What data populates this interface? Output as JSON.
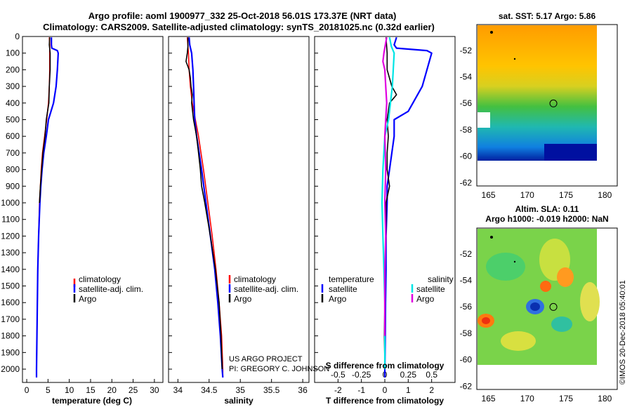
{
  "header": {
    "line1": "Argo profile: aoml 1900977_332 25-Oct-2018 56.01S 173.37E (NRT data)",
    "line2": "Climatology: CARS2009. Satellite-adjusted climatology: synTS_20181025.nc (0.32d earlier)"
  },
  "colors": {
    "climatology": "#ff0000",
    "satellite": "#0000ff",
    "argo": "#000000",
    "sat_salinity": "#00e5e5",
    "argo_salinity": "#e000e0"
  },
  "chart_data": [
    {
      "id": "temperature",
      "type": "line",
      "xlabel": "temperature (deg C)",
      "ylabel": "",
      "xlim": [
        -1,
        32
      ],
      "ylim": [
        2080,
        0
      ],
      "xticks": [
        "0",
        "5",
        "10",
        "15",
        "20",
        "25",
        "30"
      ],
      "yticks": [
        "0",
        "100",
        "200",
        "300",
        "400",
        "500",
        "600",
        "700",
        "800",
        "900",
        "1000",
        "1100",
        "1200",
        "1300",
        "1400",
        "1500",
        "1600",
        "1700",
        "1800",
        "1900",
        "2000"
      ],
      "legend": [
        "climatology",
        "satellite-adj. clim.",
        "Argo"
      ],
      "series": [
        {
          "name": "climatology",
          "depth": [
            5,
            50,
            100,
            200,
            300,
            400,
            500,
            600,
            700,
            800,
            900,
            1000,
            1200,
            1400,
            1600,
            1800,
            2000,
            2050
          ],
          "values": [
            5.3,
            5.4,
            5.4,
            5.4,
            5.3,
            5.1,
            4.7,
            4.2,
            3.7,
            3.4,
            3.2,
            3.0,
            2.8,
            2.6,
            2.5,
            2.4,
            2.3,
            2.3
          ]
        },
        {
          "name": "satellite-adj. clim.",
          "depth": [
            5,
            50,
            70,
            85,
            100,
            200,
            300,
            400,
            450,
            500,
            600,
            700,
            800,
            900,
            1000,
            1200,
            1400,
            1600,
            1800,
            2000,
            2050
          ],
          "values": [
            5.8,
            5.8,
            5.9,
            7.2,
            7.4,
            7.2,
            6.9,
            6.3,
            5.7,
            5.1,
            4.6,
            4.0,
            3.6,
            3.3,
            3.1,
            2.8,
            2.6,
            2.5,
            2.4,
            2.3,
            2.3
          ]
        },
        {
          "name": "Argo",
          "depth": [
            5,
            50,
            100,
            200,
            300,
            400,
            500,
            600,
            700,
            800,
            900,
            1000
          ],
          "values": [
            5.4,
            5.3,
            5.5,
            5.5,
            5.3,
            5.2,
            4.6,
            4.3,
            3.8,
            3.5,
            3.2,
            3.0
          ]
        }
      ]
    },
    {
      "id": "salinity",
      "type": "line",
      "xlabel": "salinity",
      "ylabel": "",
      "xlim": [
        33.85,
        36.1
      ],
      "ylim": [
        2080,
        0
      ],
      "xticks": [
        "34",
        "34.5",
        "35",
        "35.5",
        "36"
      ],
      "legend": [
        "climatology",
        "satellite-adj. clim.",
        "Argo"
      ],
      "annotation": [
        "US ARGO PROJECT",
        "PI: GREGORY C. JOHNSON"
      ],
      "series": [
        {
          "name": "climatology",
          "depth": [
            5,
            100,
            200,
            300,
            400,
            500,
            600,
            700,
            800,
            1000,
            1200,
            1400,
            1600,
            1800,
            2000,
            2050
          ],
          "values": [
            34.15,
            34.17,
            34.18,
            34.2,
            34.23,
            34.28,
            34.33,
            34.37,
            34.41,
            34.48,
            34.55,
            34.61,
            34.66,
            34.7,
            34.72,
            34.72
          ]
        },
        {
          "name": "satellite-adj. clim.",
          "depth": [
            5,
            50,
            100,
            200,
            300,
            400,
            500,
            600,
            700,
            800,
            1000,
            1200,
            1400,
            1600,
            1800,
            2000,
            2050
          ],
          "values": [
            34.18,
            34.19,
            34.22,
            34.24,
            34.25,
            34.26,
            34.27,
            34.3,
            34.34,
            34.38,
            34.45,
            34.52,
            34.59,
            34.64,
            34.68,
            34.71,
            34.72
          ]
        },
        {
          "name": "Argo",
          "depth": [
            5,
            60,
            100,
            150,
            200,
            250,
            300,
            350,
            400,
            500,
            600,
            700,
            800,
            900,
            1000,
            1200,
            1400,
            1600,
            1800,
            2000
          ],
          "values": [
            34.16,
            34.16,
            34.15,
            34.13,
            34.18,
            34.2,
            34.21,
            34.23,
            34.22,
            34.25,
            34.3,
            34.33,
            34.36,
            34.38,
            34.43,
            34.52,
            34.6,
            34.66,
            34.69,
            34.71
          ]
        }
      ]
    },
    {
      "id": "difference",
      "type": "line",
      "xlabel": "T difference from climatology",
      "xlabel_top": "S difference from climatology",
      "ylabel": "",
      "xlim": [
        -3,
        3
      ],
      "ylim": [
        2080,
        0
      ],
      "xticks": [
        "-2",
        "-1",
        "0",
        "1",
        "2"
      ],
      "xticks_top": [
        "-0.5",
        "-0.25",
        "0",
        "0.25",
        "0.5"
      ],
      "legend_title_left": "temperature",
      "legend_title_right": "salinity",
      "legend_left": [
        "satellite",
        "Argo"
      ],
      "legend_right": [
        "satellite",
        "Argo"
      ],
      "series": [
        {
          "name": "temperature satellite",
          "depth": [
            5,
            50,
            70,
            85,
            100,
            200,
            300,
            400,
            450,
            500,
            600,
            700,
            800,
            900,
            1000,
            1200,
            1400,
            1600,
            1800,
            2000,
            2050
          ],
          "values": [
            0.5,
            0.4,
            0.5,
            1.8,
            2.0,
            1.8,
            1.6,
            1.2,
            1.0,
            0.4,
            0.4,
            0.3,
            0.2,
            0.1,
            0.1,
            0.05,
            0.05,
            0.03,
            0.02,
            0.0,
            0.0
          ]
        },
        {
          "name": "temperature Argo",
          "depth": [
            5,
            100,
            200,
            300,
            350,
            400,
            500,
            600,
            700,
            800,
            900,
            1000,
            1200,
            1400,
            1600,
            1800,
            1950
          ],
          "values": [
            0.05,
            0.1,
            0.1,
            0.3,
            0.5,
            0.2,
            0.1,
            0.15,
            0.1,
            0.1,
            0.2,
            0.05,
            0.05,
            0.0,
            0.0,
            -0.02,
            0.0
          ]
        },
        {
          "name": "salinity satellite",
          "depth": [
            5,
            60,
            100,
            200,
            300,
            400,
            500,
            600,
            800,
            1000,
            1200,
            1400,
            1600,
            1800,
            2000
          ],
          "values": [
            0.05,
            0.07,
            0.1,
            0.09,
            0.08,
            0.06,
            0.04,
            0.0,
            -0.02,
            -0.03,
            -0.02,
            -0.01,
            0.0,
            0.0,
            0.0
          ]
        },
        {
          "name": "salinity Argo",
          "depth": [
            5,
            100,
            150,
            200,
            300,
            400,
            500,
            600,
            800,
            1000,
            1200,
            1400,
            1600,
            1800
          ],
          "values": [
            0.02,
            -0.01,
            -0.02,
            0.0,
            0.01,
            0.02,
            0.01,
            0.0,
            0.01,
            0.0,
            0.01,
            0.0,
            0.0,
            0.0
          ]
        }
      ]
    }
  ],
  "maps": [
    {
      "id": "sst-map",
      "title": "sat. SST: 5.17 Argo: 5.86",
      "xticks": [
        "165",
        "170",
        "175",
        "180"
      ],
      "yticks": [
        "-52",
        "-54",
        "-56",
        "-58",
        "-60",
        "-62"
      ],
      "marker_lon": 173.37,
      "marker_lat": -56.01
    },
    {
      "id": "sla-map",
      "title_line1": "Altim. SLA: 0.11",
      "title_line2": "Argo h1000: -0.019 h2000: NaN",
      "xticks": [
        "165",
        "170",
        "175",
        "180"
      ],
      "yticks": [
        "-52",
        "-54",
        "-56",
        "-58",
        "-60",
        "-62"
      ],
      "marker_lon": 173.37,
      "marker_lat": -56.01
    }
  ],
  "watermark": "©IMOS 20-Dec-2018 05:40:01"
}
